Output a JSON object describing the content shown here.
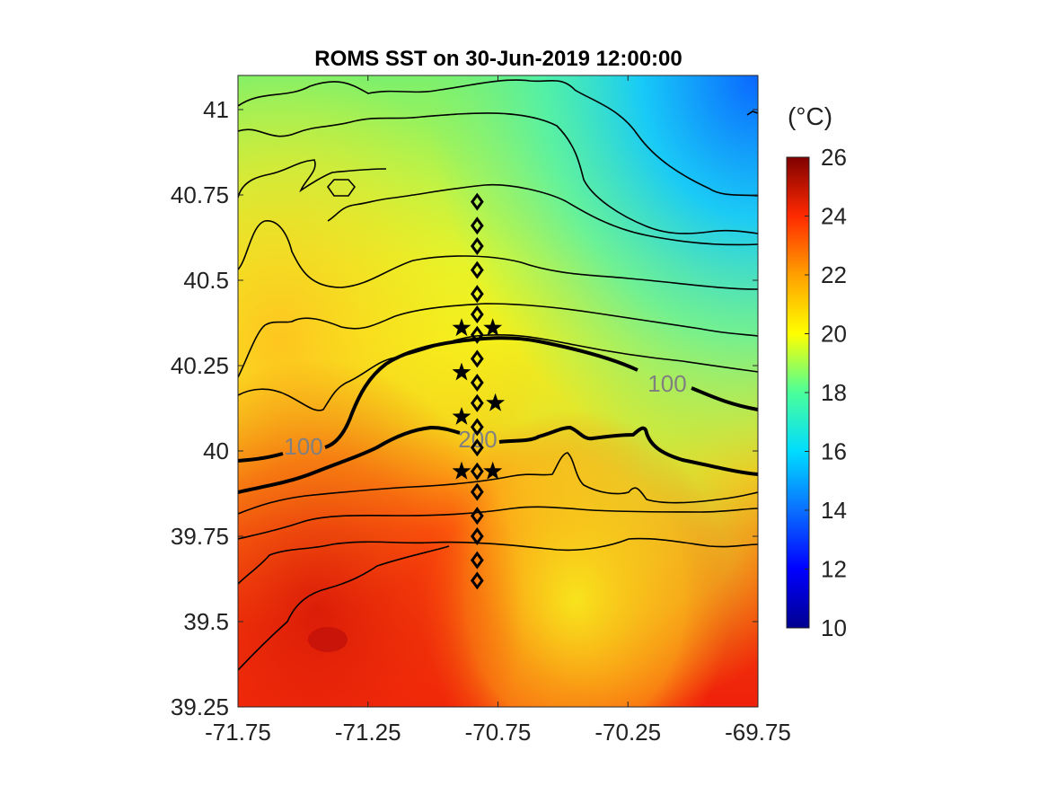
{
  "chart_data": {
    "type": "heatmap",
    "title": "ROMS SST on 30-Jun-2019 12:00:00",
    "xlim": [
      -71.75,
      -69.75
    ],
    "ylim": [
      39.25,
      41.1
    ],
    "xticks": [
      "-71.75",
      "-71.25",
      "-70.75",
      "-70.25",
      "-69.75"
    ],
    "yticks": [
      "39.25",
      "39.5",
      "39.75",
      "40",
      "40.25",
      "40.5",
      "40.75",
      "41"
    ],
    "colorbar": {
      "unit_label": "(°C)",
      "range": [
        10,
        26
      ],
      "ticks": [
        "10",
        "12",
        "14",
        "16",
        "18",
        "20",
        "22",
        "24",
        "26"
      ],
      "colormap": "jet"
    },
    "contour_labels": [
      {
        "text": "100",
        "lon": -71.58,
        "lat": 40.01
      },
      {
        "text": "200",
        "lon": -70.8,
        "lat": 40.04
      },
      {
        "text": "100",
        "lon": -70.1,
        "lat": 40.2
      }
    ],
    "transect_diamonds": {
      "lon": -70.83,
      "lat": [
        40.73,
        40.66,
        40.6,
        40.53,
        40.46,
        40.4,
        40.34,
        40.27,
        40.2,
        40.14,
        40.07,
        40.01,
        39.94,
        39.88,
        39.81,
        39.75,
        39.68,
        39.62
      ]
    },
    "stars": [
      {
        "lon": -70.89,
        "lat": 40.36
      },
      {
        "lon": -70.77,
        "lat": 40.36
      },
      {
        "lon": -70.89,
        "lat": 40.23
      },
      {
        "lon": -70.76,
        "lat": 40.14
      },
      {
        "lon": -70.89,
        "lat": 40.1
      },
      {
        "lon": -70.89,
        "lat": 39.94
      },
      {
        "lon": -70.77,
        "lat": 39.94
      }
    ]
  }
}
